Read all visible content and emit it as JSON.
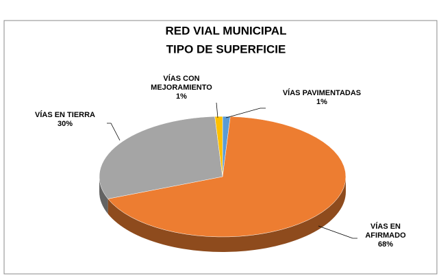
{
  "chart_data": {
    "type": "pie3d",
    "title": [
      "RED VIAL MUNICIPAL",
      "TIPO DE SUPERFICIE"
    ],
    "categories": [
      "VÍAS PAVIMENTADAS",
      "VÍAS EN AFIRMADO",
      "VÍAS EN TIERRA",
      "VÍAS CON MEJORAMIENTO"
    ],
    "values": [
      1,
      68,
      30,
      1
    ],
    "value_labels": [
      "1%",
      "68%",
      "30%",
      "1%"
    ],
    "colors": [
      "#5b9bd5",
      "#ed7d31",
      "#a5a5a5",
      "#ffc000"
    ]
  }
}
